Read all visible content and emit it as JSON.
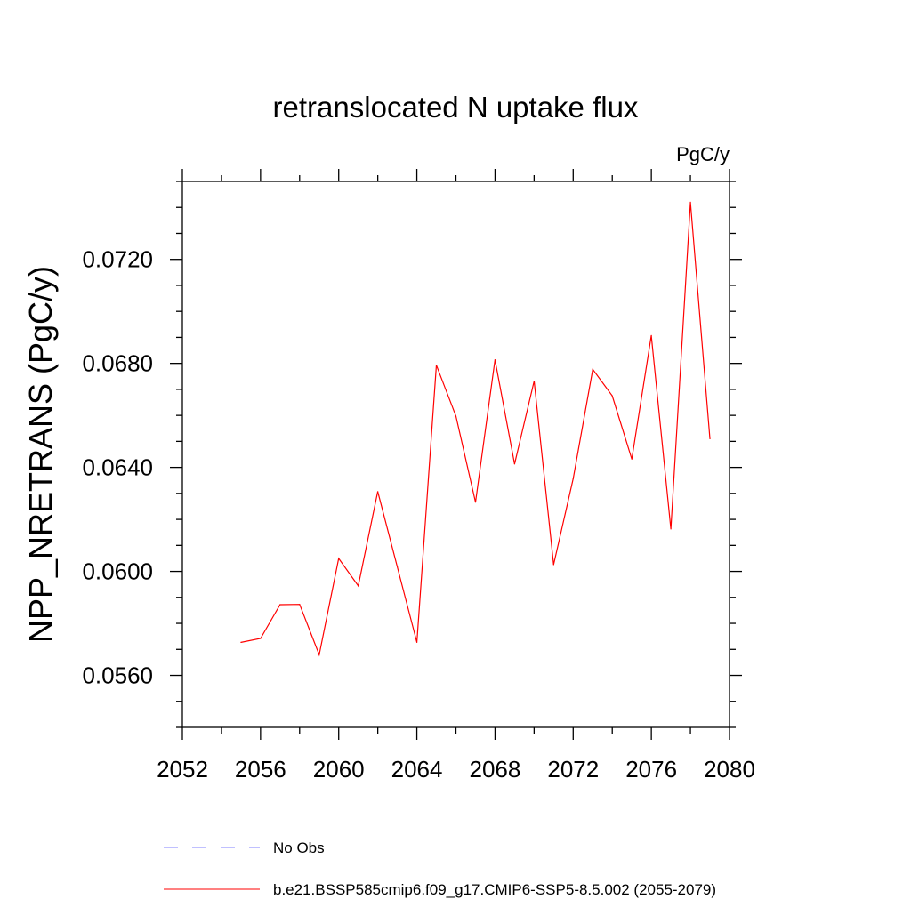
{
  "chart_data": {
    "type": "line",
    "title": "retranslocated N uptake flux",
    "units": "PgC/y",
    "ylabel": "NPP_NRETRANS  (PgC/y)",
    "xlabel": "",
    "xlim": [
      2052,
      2080
    ],
    "ylim": [
      0.054,
      0.075
    ],
    "x_major_ticks": [
      2052,
      2056,
      2060,
      2064,
      2068,
      2072,
      2076,
      2080
    ],
    "x_minor_step": 2,
    "y_major_ticks": [
      0.056,
      0.06,
      0.064,
      0.068,
      0.072
    ],
    "y_tick_labels": [
      "0.0560",
      "0.0600",
      "0.0640",
      "0.0680",
      "0.0720"
    ],
    "y_minor_step": 0.001,
    "grid": false,
    "legend_position": "bottom",
    "series": [
      {
        "name": "b.e21.BSSP585cmip6.f09_g17.CMIP6-SSP5-8.5.002 (2055-2079)",
        "color": "#ff0000",
        "style": "solid",
        "x": [
          2055,
          2056,
          2057,
          2058,
          2059,
          2060,
          2061,
          2062,
          2063,
          2064,
          2065,
          2066,
          2067,
          2068,
          2069,
          2070,
          2071,
          2072,
          2073,
          2074,
          2075,
          2076,
          2077,
          2078,
          2079
        ],
        "y": [
          0.05727,
          0.05742,
          0.05872,
          0.05873,
          0.05679,
          0.0605,
          0.05944,
          0.06307,
          0.06017,
          0.05727,
          0.06793,
          0.06597,
          0.06266,
          0.06814,
          0.06413,
          0.06732,
          0.06026,
          0.06357,
          0.06777,
          0.06675,
          0.06432,
          0.06907,
          0.06163,
          0.0742,
          0.0651
        ]
      }
    ],
    "legend": [
      {
        "label": "No Obs",
        "color": "#8080ff",
        "style": "dashed"
      },
      {
        "label": "b.e21.BSSP585cmip6.f09_g17.CMIP6-SSP5-8.5.002 (2055-2079)",
        "color": "#ff0000",
        "style": "solid"
      }
    ]
  }
}
